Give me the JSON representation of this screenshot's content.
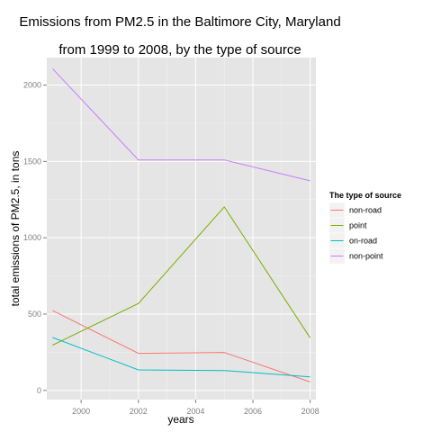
{
  "chart_data": {
    "type": "line",
    "title_line1": "Emissions from PM2.5 in the Baltimore City, Maryland",
    "title_line2": "from 1999 to 2008, by the type of source",
    "xlabel": "years",
    "ylabel": "total emissions of PM2.5, in tons",
    "x": [
      1999,
      2002,
      2005,
      2008
    ],
    "xlim": [
      1998.8,
      2008.2
    ],
    "ylim": [
      -60,
      2180
    ],
    "x_ticks": [
      2000,
      2002,
      2004,
      2006,
      2008
    ],
    "y_ticks": [
      0,
      500,
      1000,
      1500,
      2000
    ],
    "grid": true,
    "legend": {
      "title": "The type of source",
      "placement": "right"
    },
    "series": [
      {
        "name": "non-road",
        "color": "#F8766D",
        "values": [
          522.9,
          242.7,
          248.9,
          55.8
        ]
      },
      {
        "name": "point",
        "color": "#7CAE00",
        "values": [
          296.8,
          569.3,
          1202.3,
          344.9
        ]
      },
      {
        "name": "on-road",
        "color": "#00BFC4",
        "values": [
          346.8,
          134.3,
          130.4,
          88.3
        ]
      },
      {
        "name": "non-point",
        "color": "#C77CFF",
        "values": [
          2107.6,
          1509.5,
          1509.5,
          1373.2
        ]
      }
    ]
  }
}
